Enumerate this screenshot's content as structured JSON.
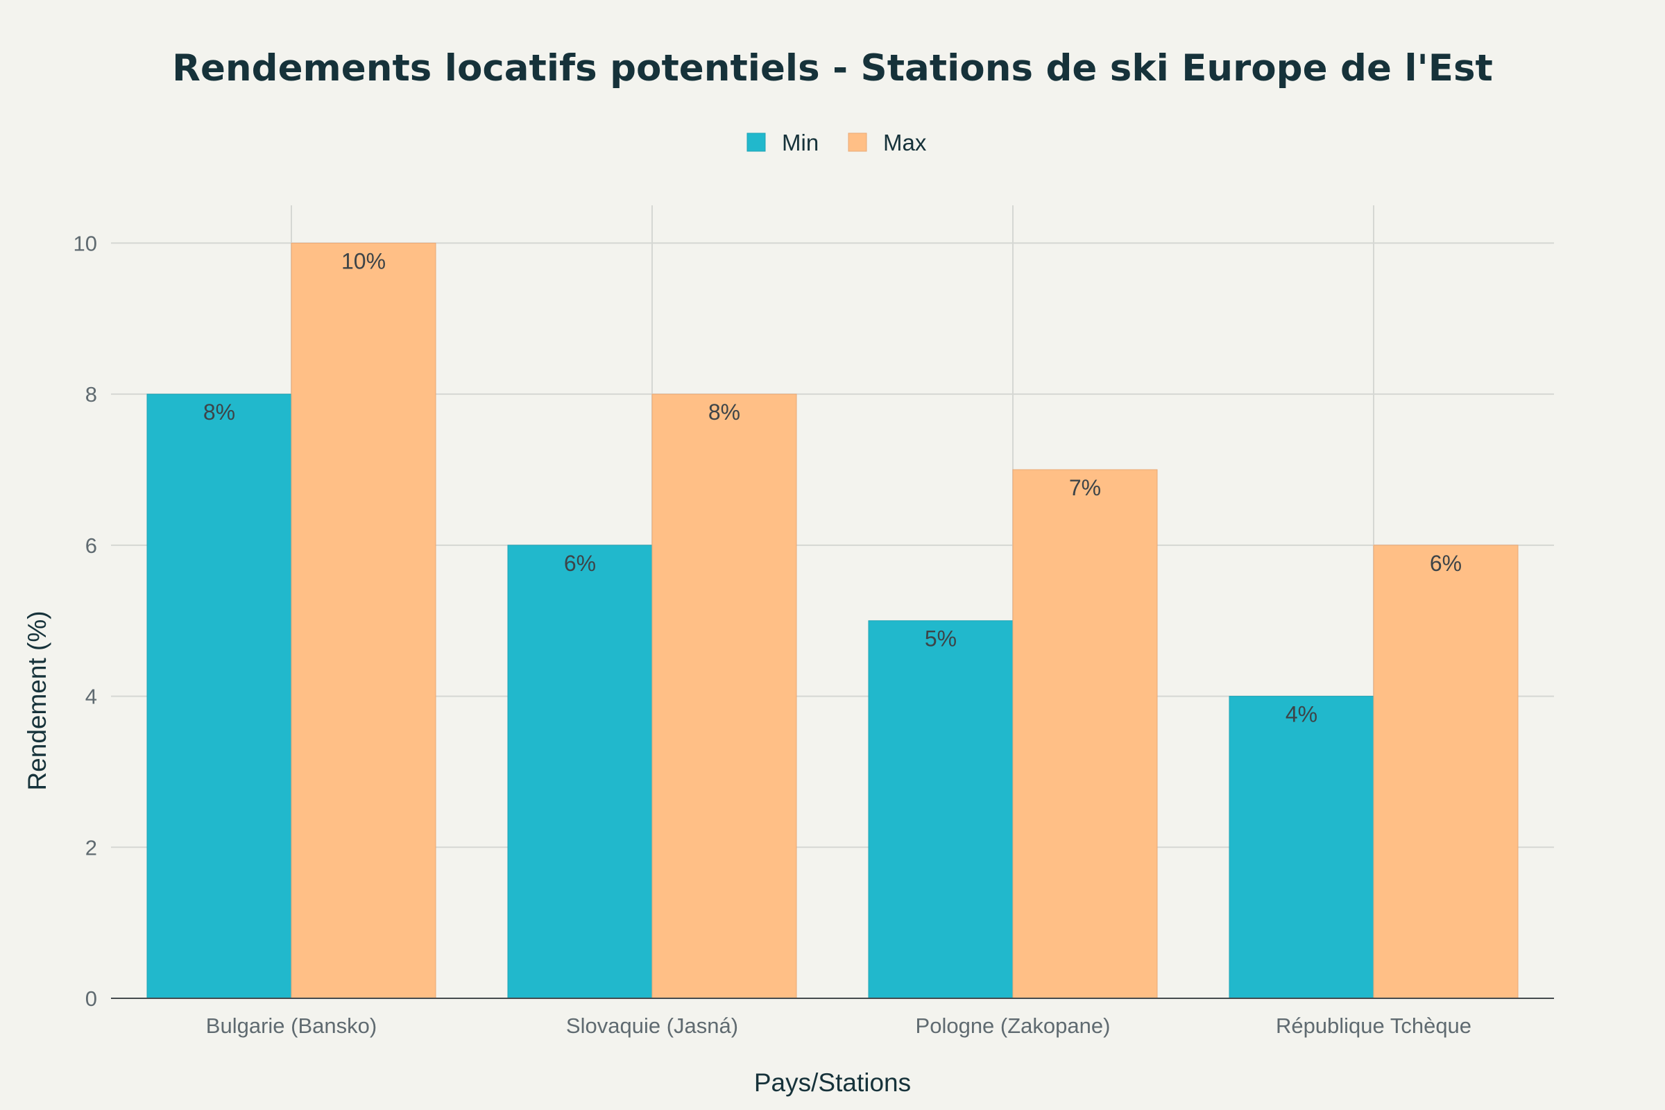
{
  "chart_data": {
    "type": "bar",
    "title": "Rendements locatifs potentiels - Stations de ski Europe de l'Est",
    "xlabel": "Pays/Stations",
    "ylabel": "Rendement (%)",
    "categories": [
      "Bulgarie (Bansko)",
      "Slovaquie (Jasná)",
      "Pologne (Zakopane)",
      "République Tchèque"
    ],
    "series": [
      {
        "name": "Min",
        "values": [
          8,
          6,
          5,
          4
        ],
        "labels": [
          "8%",
          "6%",
          "5%",
          "4%"
        ],
        "color": "#21b8cc"
      },
      {
        "name": "Max",
        "values": [
          10,
          8,
          7,
          6
        ],
        "labels": [
          "10%",
          "8%",
          "7%",
          "6%"
        ],
        "color": "#ffbf86"
      }
    ],
    "ylim": [
      0,
      10.5
    ],
    "yticks": [
      0,
      2,
      4,
      6,
      8,
      10
    ],
    "ytick_labels": [
      "0",
      "2",
      "4",
      "6",
      "8",
      "10"
    ],
    "grid": true,
    "legend_position": "top-center"
  }
}
